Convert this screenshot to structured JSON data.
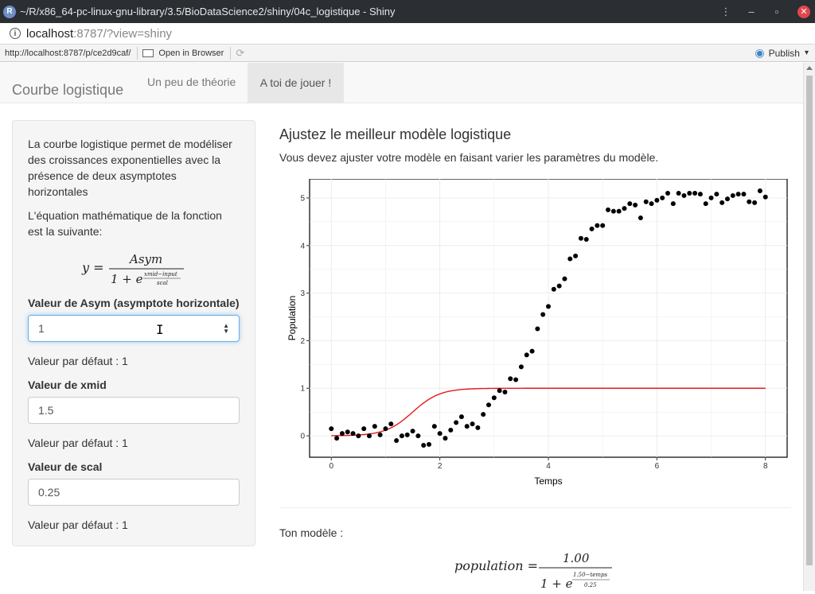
{
  "window": {
    "title": "~/R/x86_64-pc-linux-gnu-library/3.5/BioDataScience2/shiny/04c_logistique - Shiny",
    "app_icon_letter": "R",
    "menu_icon": "kebab-icon",
    "minimize_glyph": "–",
    "restore_glyph": "▫",
    "close_glyph": "✕"
  },
  "address": {
    "info_glyph": "i",
    "host": "localhost",
    "rest": ":8787/?view=shiny"
  },
  "viewer": {
    "url": "http://localhost:8787/p/ce2d9caf/",
    "open_browser_label": "Open in Browser",
    "refresh_glyph": "⟳",
    "publish_label": "Publish",
    "publish_arrow": "▾",
    "publish_glyph": "◉"
  },
  "navbar": {
    "brand": "Courbe logistique",
    "tabs": [
      {
        "label": "Un peu de théorie",
        "active": false
      },
      {
        "label": "A toi de jouer !",
        "active": true
      }
    ]
  },
  "sidebar": {
    "intro": "La courbe logistique permet de modéliser des croissances exponentielles avec la présence de deux asymptotes horizontales",
    "equation_intro": "L'équation mathématique de la fonction est la suivante:",
    "formula": {
      "lhs": "y =",
      "numerator": "Asym",
      "denominator_base": "1 + e",
      "exponent_num": "xmid−input",
      "exponent_den": "scal"
    },
    "fields": [
      {
        "label": "Valeur de Asym (asymptote horizontale)",
        "value": "1",
        "default_text": "Valeur par défaut : 1",
        "focused": true
      },
      {
        "label": "Valeur de xmid",
        "value": "1.5",
        "default_text": "Valeur par défaut : 1",
        "focused": false
      },
      {
        "label": "Valeur de scal",
        "value": "0.25",
        "default_text": "Valeur par défaut : 1",
        "focused": false
      }
    ],
    "spin_up": "▲",
    "spin_down": "▼",
    "ibeam": "I"
  },
  "main": {
    "heading": "Ajustez le meilleur modèle logistique",
    "subtitle": "Vous devez ajuster votre modèle en faisant varier les paramètres du modèle.",
    "model_label": "Ton modèle :",
    "model_formula": {
      "lhs": "population =",
      "numerator": "1.00",
      "denominator_base": "1 + e",
      "exponent_num": "1.50−temps",
      "exponent_den": "0.25"
    }
  },
  "chart_data": {
    "type": "scatter",
    "xlabel": "Temps",
    "ylabel": "Population",
    "xlim": [
      -0.4,
      8.4
    ],
    "ylim": [
      -0.45,
      5.4
    ],
    "xticks": [
      "0",
      "2",
      "4",
      "6",
      "8"
    ],
    "yticks": [
      "0",
      "1",
      "2",
      "3",
      "4",
      "5"
    ],
    "grid": true,
    "series": [
      {
        "kind": "points",
        "color": "#000000",
        "x": [
          0.0,
          0.1,
          0.2,
          0.3,
          0.4,
          0.5,
          0.6,
          0.7,
          0.8,
          0.9,
          1.0,
          1.1,
          1.2,
          1.3,
          1.4,
          1.5,
          1.6,
          1.7,
          1.8,
          1.9,
          2.0,
          2.1,
          2.2,
          2.3,
          2.4,
          2.5,
          2.6,
          2.7,
          2.8,
          2.9,
          3.0,
          3.1,
          3.2,
          3.3,
          3.4,
          3.5,
          3.6,
          3.7,
          3.8,
          3.9,
          4.0,
          4.1,
          4.2,
          4.3,
          4.4,
          4.5,
          4.6,
          4.7,
          4.8,
          4.9,
          5.0,
          5.1,
          5.2,
          5.3,
          5.4,
          5.5,
          5.6,
          5.7,
          5.8,
          5.9,
          6.0,
          6.1,
          6.2,
          6.3,
          6.4,
          6.5,
          6.6,
          6.7,
          6.8,
          6.9,
          7.0,
          7.1,
          7.2,
          7.3,
          7.4,
          7.5,
          7.6,
          7.7,
          7.8,
          7.9,
          8.0
        ],
        "y": [
          0.15,
          -0.05,
          0.05,
          0.08,
          0.05,
          0.0,
          0.15,
          0.0,
          0.2,
          0.02,
          0.15,
          0.25,
          -0.1,
          0.0,
          0.02,
          0.1,
          0.0,
          -0.2,
          -0.18,
          0.2,
          0.05,
          -0.05,
          0.12,
          0.28,
          0.4,
          0.2,
          0.25,
          0.17,
          0.45,
          0.65,
          0.8,
          0.95,
          0.92,
          1.2,
          1.18,
          1.45,
          1.7,
          1.78,
          2.25,
          2.55,
          2.72,
          3.08,
          3.15,
          3.3,
          3.72,
          3.78,
          4.15,
          4.13,
          4.35,
          4.42,
          4.42,
          4.75,
          4.72,
          4.72,
          4.78,
          4.88,
          4.85,
          4.58,
          4.92,
          4.88,
          4.95,
          5.0,
          5.1,
          4.88,
          5.1,
          5.05,
          5.1,
          5.1,
          5.08,
          4.88,
          5.0,
          5.08,
          4.9,
          4.98,
          5.05,
          5.08,
          5.08,
          4.92,
          4.9,
          5.15,
          5.02
        ]
      },
      {
        "kind": "line",
        "name": "",
        "color": "#e41a1c",
        "model": "logistic",
        "asym": 1.0,
        "xmid": 1.5,
        "scal": 0.25,
        "x_range": [
          0,
          8
        ]
      }
    ]
  }
}
